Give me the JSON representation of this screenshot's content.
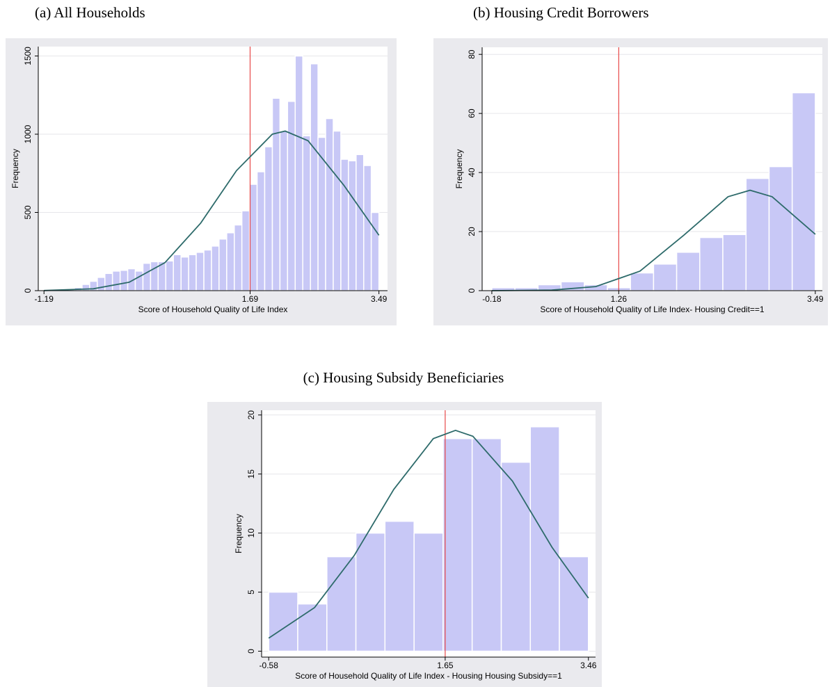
{
  "chart_data": [
    {
      "type": "histogram",
      "title": "(a) All Households",
      "xlabel": "Score of Household Quality of Life Index",
      "ylabel": "Frequency",
      "bins": [
        -1.19,
        -1.084,
        -0.977,
        -0.871,
        -0.764,
        -0.658,
        -0.552,
        -0.445,
        -0.339,
        -0.233,
        -0.126,
        -0.02,
        0.086,
        0.193,
        0.299,
        0.405,
        0.512,
        0.618,
        0.725,
        0.831,
        0.937,
        1.044,
        1.15,
        1.256,
        1.363,
        1.469,
        1.575,
        1.682,
        1.788,
        1.894,
        2.001,
        2.107,
        2.213,
        2.32,
        2.426,
        2.533,
        2.639,
        2.745,
        2.852,
        2.958,
        3.064,
        3.171,
        3.277,
        3.383,
        3.49
      ],
      "values": [
        0,
        2,
        5,
        10,
        20,
        40,
        60,
        85,
        110,
        125,
        130,
        140,
        125,
        175,
        185,
        185,
        190,
        230,
        215,
        230,
        245,
        260,
        285,
        330,
        370,
        420,
        510,
        680,
        760,
        920,
        1230,
        1020,
        1210,
        1500,
        990,
        1450,
        980,
        1100,
        1020,
        840,
        830,
        870,
        800,
        500
      ],
      "color": "#c8c8f6",
      "curve": {
        "x": [
          -1.19,
          -0.5,
          0,
          0.5,
          1.0,
          1.5,
          2.0,
          2.18,
          2.5,
          3.0,
          3.49
        ],
        "values": [
          1,
          12,
          54,
          179,
          432,
          767,
          1000,
          1020,
          958,
          674,
          354
        ],
        "color": "#2e6b6b"
      },
      "vline": 1.69,
      "vline_color": "#e84848",
      "xlim": [
        -1.27,
        3.61
      ],
      "ylim": [
        0,
        1560
      ],
      "xticks": [
        -1.19,
        1.69,
        3.49
      ],
      "yticks": [
        0,
        500,
        1000,
        1500
      ],
      "grid": true
    },
    {
      "type": "histogram",
      "title": "(b) Housing Credit Borrowers",
      "xlabel": "Score of Household Quality of Life Index- Housing Credit==1",
      "ylabel": "Frequency",
      "bins": [
        -0.18,
        0.082,
        0.344,
        0.606,
        0.869,
        1.131,
        1.393,
        1.655,
        1.917,
        2.179,
        2.441,
        2.704,
        2.966,
        3.228,
        3.49
      ],
      "values": [
        1,
        1,
        2,
        3,
        2,
        1,
        6,
        9,
        13,
        18,
        19,
        38,
        42,
        67
      ],
      "color": "#c8c8f6",
      "curve": {
        "x": [
          -0.18,
          0.5,
          1.0,
          1.5,
          2.0,
          2.5,
          2.75,
          3.0,
          3.49
        ],
        "values": [
          0,
          0.2,
          1.4,
          6.6,
          18.8,
          31.8,
          34,
          31.8,
          19.1
        ],
        "color": "#2e6b6b"
      },
      "vline": 1.26,
      "vline_color": "#e84848",
      "xlim": [
        -0.29,
        3.57
      ],
      "ylim": [
        0,
        82.4
      ],
      "xticks": [
        -0.18,
        1.26,
        3.49
      ],
      "yticks": [
        0,
        20,
        40,
        60,
        80
      ],
      "grid": true
    },
    {
      "type": "histogram",
      "title": "(c) Housing Subsidy Beneficiaries",
      "xlabel": "Score of Household Quality of Life Index - Housing Housing Subsidy==1",
      "ylabel": "Frequency",
      "bins": [
        -0.58,
        -0.213,
        0.155,
        0.522,
        0.889,
        1.257,
        1.624,
        1.991,
        2.359,
        2.726,
        3.093,
        3.46
      ],
      "values": [
        5,
        4,
        8,
        10,
        11,
        10,
        18,
        18,
        16,
        19,
        8
      ],
      "color": "#c8c8f6",
      "curve": {
        "x": [
          -0.58,
          0,
          0.5,
          1.0,
          1.5,
          1.78,
          2.0,
          2.5,
          3.0,
          3.46
        ],
        "values": [
          1.1,
          3.7,
          8.1,
          13.7,
          18.0,
          18.7,
          18.2,
          14.4,
          8.8,
          4.5
        ],
        "color": "#2e6b6b"
      },
      "vline": 1.65,
      "vline_color": "#e84848",
      "xlim": [
        -0.67,
        3.55
      ],
      "ylim": [
        -0.5,
        20.4
      ],
      "xticks": [
        -0.58,
        1.65,
        3.46
      ],
      "yticks": [
        0,
        5,
        10,
        15,
        20
      ],
      "grid": true
    }
  ]
}
